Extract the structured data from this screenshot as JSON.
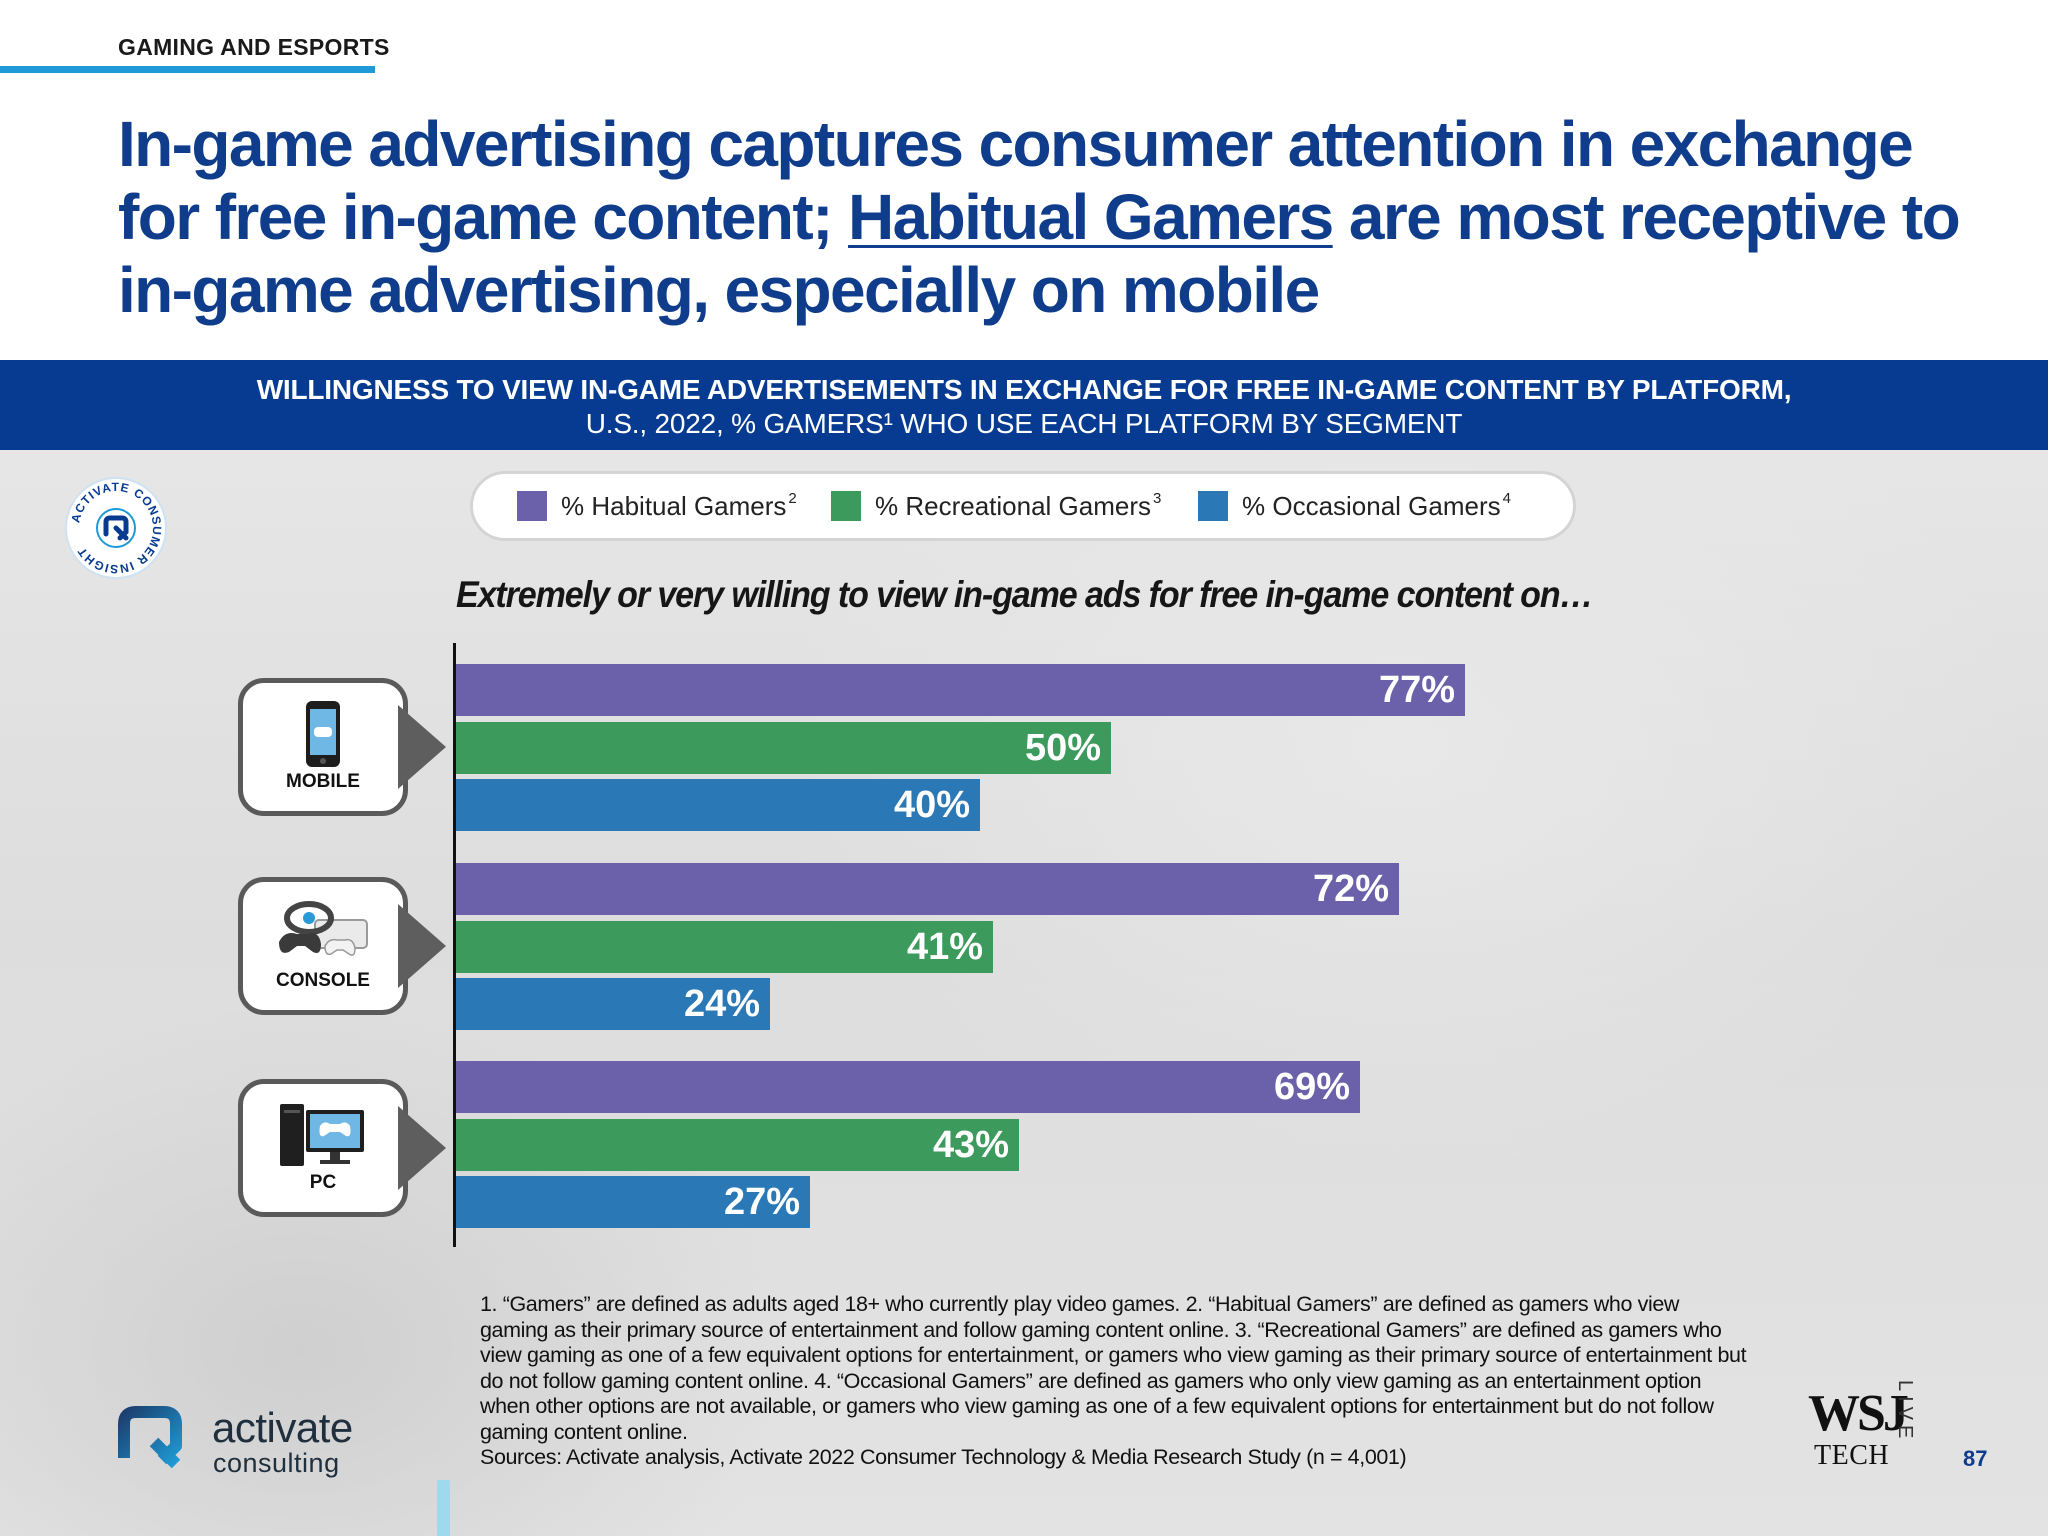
{
  "section_tag": "GAMING AND ESPORTS",
  "headline": {
    "part1": "In-game advertising captures consumer attention in exchange for free in-game content; ",
    "underlined": "Habitual Gamers",
    "part2": " are most receptive to in-game advertising, especially on mobile"
  },
  "banner": {
    "line1": "WILLINGNESS TO VIEW IN-GAME ADVERTISEMENTS IN EXCHANGE FOR FREE IN-GAME CONTENT BY PLATFORM,",
    "line2": "U.S., 2022, % GAMERS¹ WHO USE EACH PLATFORM BY SEGMENT"
  },
  "badge": {
    "ring_text": "ACTIVATE CONSUMER INSIGHT",
    "icon": "activate-logo-icon"
  },
  "legend": [
    {
      "label": "% Habitual Gamers",
      "sup": "2"
    },
    {
      "label": "% Recreational Gamers",
      "sup": "3"
    },
    {
      "label": "% Occasional Gamers",
      "sup": "4"
    }
  ],
  "colors": {
    "habitual": "#6b61aa",
    "recreational": "#3b9a5c",
    "occasional": "#2a78b5",
    "navy": "#063b91"
  },
  "chart_data": {
    "type": "bar",
    "orientation": "horizontal",
    "title": "Extremely or very willing to view in-game ads for free in-game content on…",
    "categories": [
      "MOBILE",
      "CONSOLE",
      "PC"
    ],
    "series": [
      {
        "name": "% Habitual Gamers",
        "values": [
          77,
          72,
          69
        ],
        "labels": [
          "77%",
          "72%",
          "69%"
        ]
      },
      {
        "name": "% Recreational Gamers",
        "values": [
          50,
          41,
          43
        ],
        "labels": [
          "50%",
          "41%",
          "43%"
        ]
      },
      {
        "name": "% Occasional Gamers",
        "values": [
          40,
          24,
          27
        ],
        "labels": [
          "40%",
          "24%",
          "27%"
        ]
      }
    ],
    "xlim": [
      0,
      100
    ],
    "grid": false,
    "legend_position": "top"
  },
  "category_icons": [
    "mobile-phone-icon",
    "console-icon",
    "pc-monitor-icon"
  ],
  "footnote": {
    "text": "1. “Gamers” are defined as adults aged 18+ who currently play video games.  2. “Habitual Gamers” are defined as gamers who view gaming as their primary source of entertainment and follow gaming content online.  3. “Recreational Gamers” are defined as gamers who view gaming as one of a few equivalent options for entertainment, or gamers who view gaming as their primary source of entertainment but do not follow gaming content online.  4. “Occasional Gamers” are defined as gamers who only view gaming as an entertainment option when other options are not available, or gamers who view gaming as one of a few equivalent options for entertainment but do not follow gaming content online.",
    "sources": "Sources: Activate analysis, Activate 2022 Consumer Technology & Media Research Study (n = 4,001)"
  },
  "logo": {
    "word1": "activate",
    "word2": "consulting"
  },
  "wsj": {
    "big": "WSJ",
    "tech": "TECH",
    "live": "LIVE"
  },
  "page_number": "87"
}
